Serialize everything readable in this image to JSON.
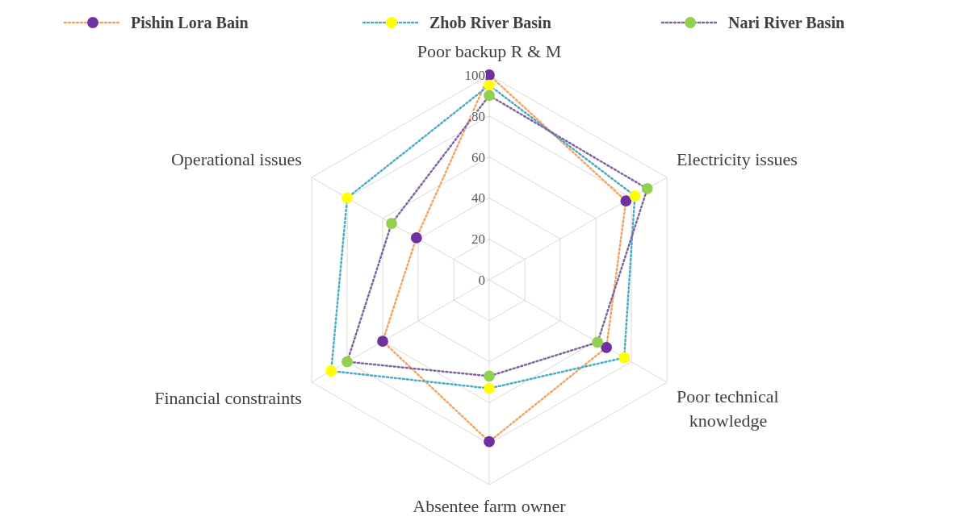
{
  "chart_data": {
    "type": "radar",
    "categories": [
      "Poor backup R & M",
      "Electricity issues",
      "Poor technical knowledge",
      "Absentee farm owner",
      "Financial constraints",
      "Operational issues"
    ],
    "ylim": [
      0,
      100
    ],
    "yticks": [
      0,
      20,
      40,
      60,
      80,
      100
    ],
    "grid": true,
    "legend": "top",
    "marker": "circle",
    "line_style": "dotted",
    "series": [
      {
        "name": "Pishin Lora Bain",
        "color": "#f4a460",
        "colors": [
          "#7030a0",
          "#7030a0",
          "#7030a0",
          "#7030a0",
          "#7030a0",
          "#7030a0"
        ],
        "values": [
          100,
          77,
          66,
          79,
          60,
          41
        ]
      },
      {
        "name": "Zhob River Basin",
        "color": "#4bacc6",
        "colors": [
          "#ffff00",
          "#ffff00",
          "#ffff00",
          "#ffff00",
          "#ffff00",
          "#ffff00"
        ],
        "values": [
          95,
          82,
          76,
          53,
          89,
          80
        ]
      },
      {
        "name": "Nari River Basin",
        "color": "#8064a2",
        "colors": [
          "#92d050",
          "#92d050",
          "#92d050",
          "#92d050",
          "#92d050",
          "#92d050"
        ],
        "values": [
          90,
          89,
          61,
          47,
          80,
          55
        ]
      }
    ]
  }
}
